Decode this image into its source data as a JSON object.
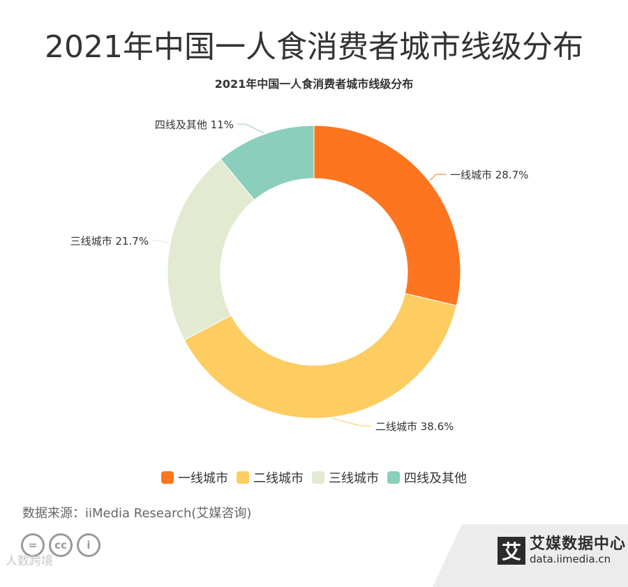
{
  "page": {
    "title": "2021年中国一人食消费者城市线级分布",
    "source": "数据来源：iiMedia Research(艾媒咨询)",
    "watermark": "人数跨境"
  },
  "branding": {
    "logo_char": "艾",
    "name": "艾媒数据中心",
    "url": "data.iimedia.cn"
  },
  "license_icons": [
    "equal-icon",
    "cc-icon",
    "person-icon"
  ],
  "license_labels": [
    "=",
    "cc",
    "i"
  ],
  "chart_data": {
    "type": "pie",
    "donut": true,
    "title": "2021年中国一人食消费者城市线级分布",
    "categories": [
      "一线城市",
      "二线城市",
      "三线城市",
      "四线及其他"
    ],
    "values": [
      28.7,
      38.6,
      21.7,
      11
    ],
    "slice_labels": [
      "一线城市 28.7%",
      "二线城市 38.6%",
      "三线城市 21.7%",
      "四线及其他 11%"
    ],
    "colors": [
      "#fd751f",
      "#fdcd62",
      "#e2ead1",
      "#8bcebb"
    ],
    "start_angle_deg": 0,
    "direction": "clockwise",
    "legend_position": "bottom"
  }
}
